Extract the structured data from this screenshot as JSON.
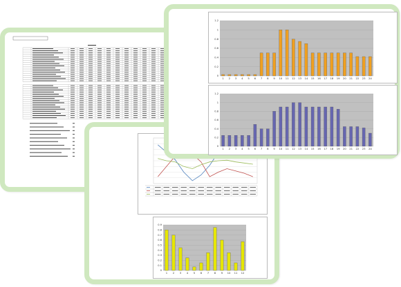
{
  "colors": {
    "card_border": "#cfe8bf",
    "plot_bg": "#c0c0c0",
    "bar_orange": "#f0a020",
    "bar_blue": "#6666b0",
    "bar_yellow": "#e6e600",
    "line_blue": "#4f81bd",
    "line_red": "#c0504d",
    "line_green": "#9bbb59"
  },
  "document": {
    "title": "",
    "table_rows": 38
  },
  "charts": {
    "top": {
      "title": "",
      "legend": "",
      "chart_data": {
        "type": "bar",
        "categories": [
          "1",
          "2",
          "3",
          "4",
          "5",
          "6",
          "7",
          "8",
          "9",
          "10",
          "11",
          "12",
          "13",
          "14",
          "15",
          "16",
          "17",
          "18",
          "19",
          "20",
          "21",
          "22",
          "23",
          "24"
        ],
        "values": [
          0.03,
          0.03,
          0.03,
          0.03,
          0.03,
          0.03,
          0.5,
          0.5,
          0.5,
          1.0,
          1.0,
          0.8,
          0.75,
          0.7,
          0.5,
          0.5,
          0.5,
          0.5,
          0.5,
          0.5,
          0.5,
          0.42,
          0.42,
          0.42
        ],
        "ylim": [
          0,
          1.2
        ],
        "yticks": [
          "0",
          "0.2",
          "0.4",
          "0.6",
          "0.8",
          "1",
          "1.2"
        ],
        "grid": true,
        "legend_position": "right"
      }
    },
    "middle": {
      "title": "",
      "legend": "",
      "chart_data": {
        "type": "bar",
        "categories": [
          "1",
          "2",
          "3",
          "4",
          "5",
          "6",
          "7",
          "8",
          "9",
          "10",
          "11",
          "12",
          "13",
          "14",
          "15",
          "16",
          "17",
          "18",
          "19",
          "20",
          "21",
          "22",
          "23",
          "24"
        ],
        "values": [
          0.25,
          0.25,
          0.25,
          0.25,
          0.25,
          0.5,
          0.4,
          0.4,
          0.8,
          0.9,
          0.9,
          1.0,
          1.0,
          0.9,
          0.9,
          0.9,
          0.9,
          0.9,
          0.85,
          0.45,
          0.45,
          0.45,
          0.42,
          0.3
        ],
        "ylim": [
          0,
          1.2
        ],
        "yticks": [
          "0",
          "0.2",
          "0.4",
          "0.6",
          "0.8",
          "1",
          "1.2"
        ],
        "grid": true,
        "legend_position": "right"
      }
    },
    "lines": {
      "chart_data": {
        "type": "line",
        "categories": [
          "1",
          "2",
          "3",
          "4",
          "5",
          "6",
          "7",
          "8",
          "9",
          "10",
          "11",
          "12"
        ],
        "series": [
          {
            "values": [
              68,
              55,
              42,
              20,
              5,
              15,
              32,
              55,
              72,
              50,
              60,
              75
            ]
          },
          {
            "values": [
              12,
              30,
              48,
              58,
              52,
              38,
              12,
              20,
              26,
              22,
              18,
              12
            ]
          },
          {
            "values": [
              44,
              40,
              38,
              30,
              26,
              33,
              38,
              40,
              41,
              38,
              36,
              34
            ]
          }
        ],
        "ylim": [
          0,
          80
        ],
        "grid": true
      },
      "table_rows": 3
    },
    "bottom": {
      "title": "",
      "legend": "",
      "chart_data": {
        "type": "bar",
        "categories": [
          "1",
          "2",
          "3",
          "4",
          "5",
          "6",
          "7",
          "8",
          "9",
          "10",
          "11",
          "12"
        ],
        "values": [
          0.8,
          0.7,
          0.45,
          0.25,
          0.07,
          0.15,
          0.35,
          0.85,
          0.6,
          0.35,
          0.15,
          0.57
        ],
        "ylim": [
          0,
          0.9
        ],
        "yticks": [
          "0",
          "0.1",
          "0.2",
          "0.3",
          "0.4",
          "0.5",
          "0.6",
          "0.7",
          "0.8",
          "0.9"
        ],
        "grid": true,
        "legend_position": "right"
      }
    }
  }
}
